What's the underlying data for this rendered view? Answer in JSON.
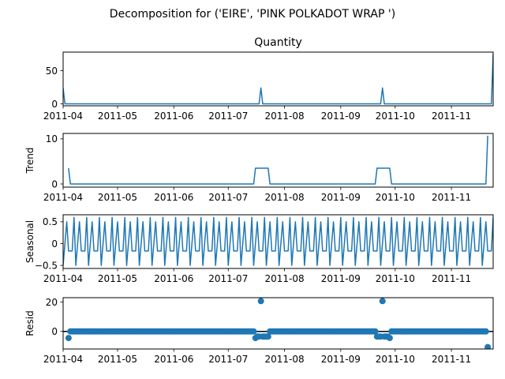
{
  "chart_data": {
    "type": "line",
    "title": "Decomposition for ('EIRE', 'PINK POLKADOT WRAP ')",
    "x_range": [
      "2011-04-01",
      "2011-11-24"
    ],
    "x_ticks": [
      "2011-04",
      "2011-05",
      "2011-06",
      "2011-07",
      "2011-08",
      "2011-09",
      "2011-10",
      "2011-11"
    ],
    "line_color": "#1f77b4",
    "panels": [
      {
        "id": "observed",
        "type": "line",
        "title": "Quantity",
        "ylabel": "",
        "ylim": [
          -3,
          78
        ],
        "y_ticks": [
          0,
          50
        ],
        "series": [
          {
            "x": "2011-04-01",
            "y": 24
          },
          {
            "x": "2011-04-02",
            "y": 0
          },
          {
            "x": "2011-07-18",
            "y": 0
          },
          {
            "x": "2011-07-19",
            "y": 24
          },
          {
            "x": "2011-07-20",
            "y": 0
          },
          {
            "x": "2011-09-23",
            "y": 0
          },
          {
            "x": "2011-09-24",
            "y": 24
          },
          {
            "x": "2011-09-25",
            "y": 0
          },
          {
            "x": "2011-11-23",
            "y": 0
          },
          {
            "x": "2011-11-24",
            "y": 75
          }
        ]
      },
      {
        "id": "trend",
        "type": "line",
        "title": "",
        "ylabel": "Trend",
        "ylim": [
          -0.7,
          11.2
        ],
        "y_ticks": [
          0,
          10
        ],
        "series": [
          {
            "x": "2011-04-04",
            "y": 3.5
          },
          {
            "x": "2011-04-05",
            "y": 0
          },
          {
            "x": "2011-07-15",
            "y": 0
          },
          {
            "x": "2011-07-16",
            "y": 3.5
          },
          {
            "x": "2011-07-23",
            "y": 3.5
          },
          {
            "x": "2011-07-24",
            "y": 0
          },
          {
            "x": "2011-09-20",
            "y": 0
          },
          {
            "x": "2011-09-21",
            "y": 3.5
          },
          {
            "x": "2011-09-28",
            "y": 3.5
          },
          {
            "x": "2011-09-29",
            "y": 0
          },
          {
            "x": "2011-11-20",
            "y": 0
          },
          {
            "x": "2011-11-21",
            "y": 10.7
          }
        ]
      },
      {
        "id": "seasonal",
        "type": "line",
        "title": "",
        "ylabel": "Seasonal",
        "ylim": [
          -0.57,
          0.66
        ],
        "y_ticks": [
          -0.5,
          0.0,
          0.5
        ],
        "period": 7,
        "cycle": [
          -0.5,
          0.0,
          0.5,
          -0.17,
          -0.17,
          -0.17,
          0.6
        ],
        "start": "2011-04-01",
        "end": "2011-11-24"
      },
      {
        "id": "resid",
        "type": "scatter",
        "title": "",
        "ylabel": "Resid",
        "ylim": [
          -12,
          23
        ],
        "y_ticks": [
          0,
          20
        ],
        "baseline": 0,
        "start": "2011-04-04",
        "end": "2011-11-21",
        "default_value": 0,
        "points": [
          {
            "x": "2011-04-04",
            "y": -4.5
          },
          {
            "x": "2011-07-16",
            "y": -4.5
          },
          {
            "x": "2011-07-17",
            "y": -3.5
          },
          {
            "x": "2011-07-18",
            "y": -3.5
          },
          {
            "x": "2011-07-19",
            "y": 20.7
          },
          {
            "x": "2011-07-20",
            "y": -3.5
          },
          {
            "x": "2011-07-21",
            "y": -3.5
          },
          {
            "x": "2011-07-22",
            "y": -3.5
          },
          {
            "x": "2011-07-23",
            "y": -3.5
          },
          {
            "x": "2011-09-21",
            "y": -3.5
          },
          {
            "x": "2011-09-22",
            "y": -3.5
          },
          {
            "x": "2011-09-23",
            "y": -3.5
          },
          {
            "x": "2011-09-24",
            "y": 20.7
          },
          {
            "x": "2011-09-25",
            "y": -3.5
          },
          {
            "x": "2011-09-26",
            "y": -3.5
          },
          {
            "x": "2011-09-27",
            "y": -3.5
          },
          {
            "x": "2011-09-28",
            "y": -4.5
          },
          {
            "x": "2011-11-21",
            "y": -10.7
          }
        ]
      }
    ]
  }
}
